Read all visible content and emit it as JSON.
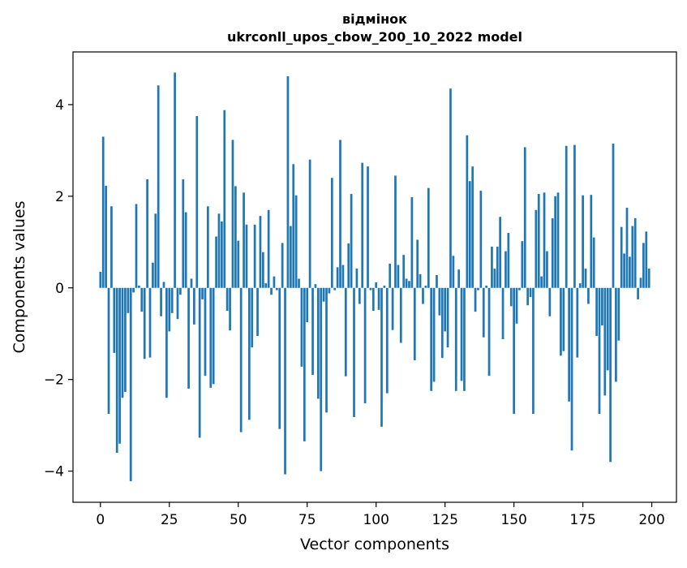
{
  "chart_data": {
    "type": "bar",
    "title_line1": "відмінок",
    "title_line2": "ukrconll_upos_cbow_200_10_2022 model",
    "xlabel": "Vector components",
    "ylabel": "Components values",
    "xlim": [
      -9.95,
      208.95
    ],
    "ylim": [
      -4.68,
      5.15
    ],
    "xticks": [
      0,
      25,
      50,
      75,
      100,
      125,
      150,
      175,
      200
    ],
    "yticks": [
      -4,
      -2,
      0,
      2,
      4
    ],
    "ytick_labels": [
      "−4",
      "−2",
      "0",
      "2",
      "4"
    ],
    "grid": false,
    "legend": "none",
    "bar_color": "#1f77b4",
    "x": [
      0,
      1,
      2,
      3,
      4,
      5,
      6,
      7,
      8,
      9,
      10,
      11,
      12,
      13,
      14,
      15,
      16,
      17,
      18,
      19,
      20,
      21,
      22,
      23,
      24,
      25,
      26,
      27,
      28,
      29,
      30,
      31,
      32,
      33,
      34,
      35,
      36,
      37,
      38,
      39,
      40,
      41,
      42,
      43,
      44,
      45,
      46,
      47,
      48,
      49,
      50,
      51,
      52,
      53,
      54,
      55,
      56,
      57,
      58,
      59,
      60,
      61,
      62,
      63,
      64,
      65,
      66,
      67,
      68,
      69,
      70,
      71,
      72,
      73,
      74,
      75,
      76,
      77,
      78,
      79,
      80,
      81,
      82,
      83,
      84,
      85,
      86,
      87,
      88,
      89,
      90,
      91,
      92,
      93,
      94,
      95,
      96,
      97,
      98,
      99,
      100,
      101,
      102,
      103,
      104,
      105,
      106,
      107,
      108,
      109,
      110,
      111,
      112,
      113,
      114,
      115,
      116,
      117,
      118,
      119,
      120,
      121,
      122,
      123,
      124,
      125,
      126,
      127,
      128,
      129,
      130,
      131,
      132,
      133,
      134,
      135,
      136,
      137,
      138,
      139,
      140,
      141,
      142,
      143,
      144,
      145,
      146,
      147,
      148,
      149,
      150,
      151,
      152,
      153,
      154,
      155,
      156,
      157,
      158,
      159,
      160,
      161,
      162,
      163,
      164,
      165,
      166,
      167,
      168,
      169,
      170,
      171,
      172,
      173,
      174,
      175,
      176,
      177,
      178,
      179,
      180,
      181,
      182,
      183,
      184,
      185,
      186,
      187,
      188,
      189,
      190,
      191,
      192,
      193,
      194,
      195,
      196,
      197,
      198,
      199
    ],
    "values": [
      0.35,
      3.3,
      2.23,
      -2.75,
      1.78,
      -1.42,
      -3.6,
      -3.4,
      -2.4,
      -2.27,
      -0.55,
      -4.22,
      -0.1,
      1.83,
      0.05,
      -0.52,
      -1.55,
      2.37,
      -1.52,
      0.55,
      1.62,
      4.42,
      -0.62,
      0.13,
      -2.4,
      -0.95,
      -0.55,
      4.7,
      -0.68,
      -0.15,
      2.37,
      1.65,
      -2.2,
      0.2,
      -0.8,
      3.75,
      -3.27,
      -0.25,
      -1.92,
      1.78,
      -2.18,
      -2.1,
      1.12,
      1.62,
      1.45,
      3.88,
      -0.5,
      -0.93,
      3.23,
      2.22,
      1.03,
      -3.15,
      2.08,
      1.38,
      -2.88,
      -1.3,
      1.38,
      -1.05,
      1.57,
      0.78,
      0.1,
      1.7,
      -0.15,
      0.25,
      -0.05,
      -3.08,
      0.98,
      -4.07,
      4.62,
      1.35,
      2.7,
      2.02,
      0.2,
      -1.72,
      -3.35,
      -0.75,
      2.8,
      -1.9,
      0.08,
      -2.42,
      -4.0,
      -0.3,
      -2.72,
      -0.12,
      2.4,
      -0.05,
      0.45,
      3.23,
      0.5,
      -1.93,
      0.97,
      2.05,
      -2.82,
      0.42,
      -0.35,
      2.73,
      -2.52,
      2.65,
      -0.05,
      -0.5,
      0.12,
      -0.48,
      -3.03,
      0.05,
      -2.3,
      0.53,
      -0.92,
      2.45,
      0.5,
      -1.2,
      0.72,
      0.2,
      0.15,
      1.98,
      -1.58,
      1.05,
      0.3,
      -0.35,
      0.05,
      2.18,
      -2.25,
      -2.05,
      0.28,
      -0.6,
      -1.53,
      -0.95,
      -1.3,
      4.35,
      0.7,
      -2.25,
      0.4,
      -2.03,
      -2.25,
      3.33,
      2.33,
      2.65,
      -0.52,
      -0.05,
      2.12,
      -1.08,
      0.05,
      -1.92,
      0.9,
      0.42,
      0.9,
      1.55,
      -1.12,
      0.8,
      1.2,
      -0.4,
      -2.75,
      -0.78,
      -0.05,
      1.02,
      3.07,
      -0.38,
      -0.2,
      -2.75,
      1.7,
      2.05,
      0.25,
      2.08,
      0.8,
      -0.62,
      1.52,
      2.0,
      2.08,
      -1.48,
      -1.38,
      3.1,
      -2.48,
      -3.55,
      3.12,
      -1.52,
      0.1,
      2.02,
      0.42,
      -0.35,
      2.03,
      1.1,
      -1.05,
      -2.75,
      -0.82,
      -2.35,
      -1.8,
      -3.8,
      3.15,
      -2.05,
      -1.15,
      1.33,
      0.75,
      1.75,
      0.68,
      1.35,
      1.52,
      -0.25,
      0.22,
      0.98,
      1.23,
      0.42
    ]
  }
}
